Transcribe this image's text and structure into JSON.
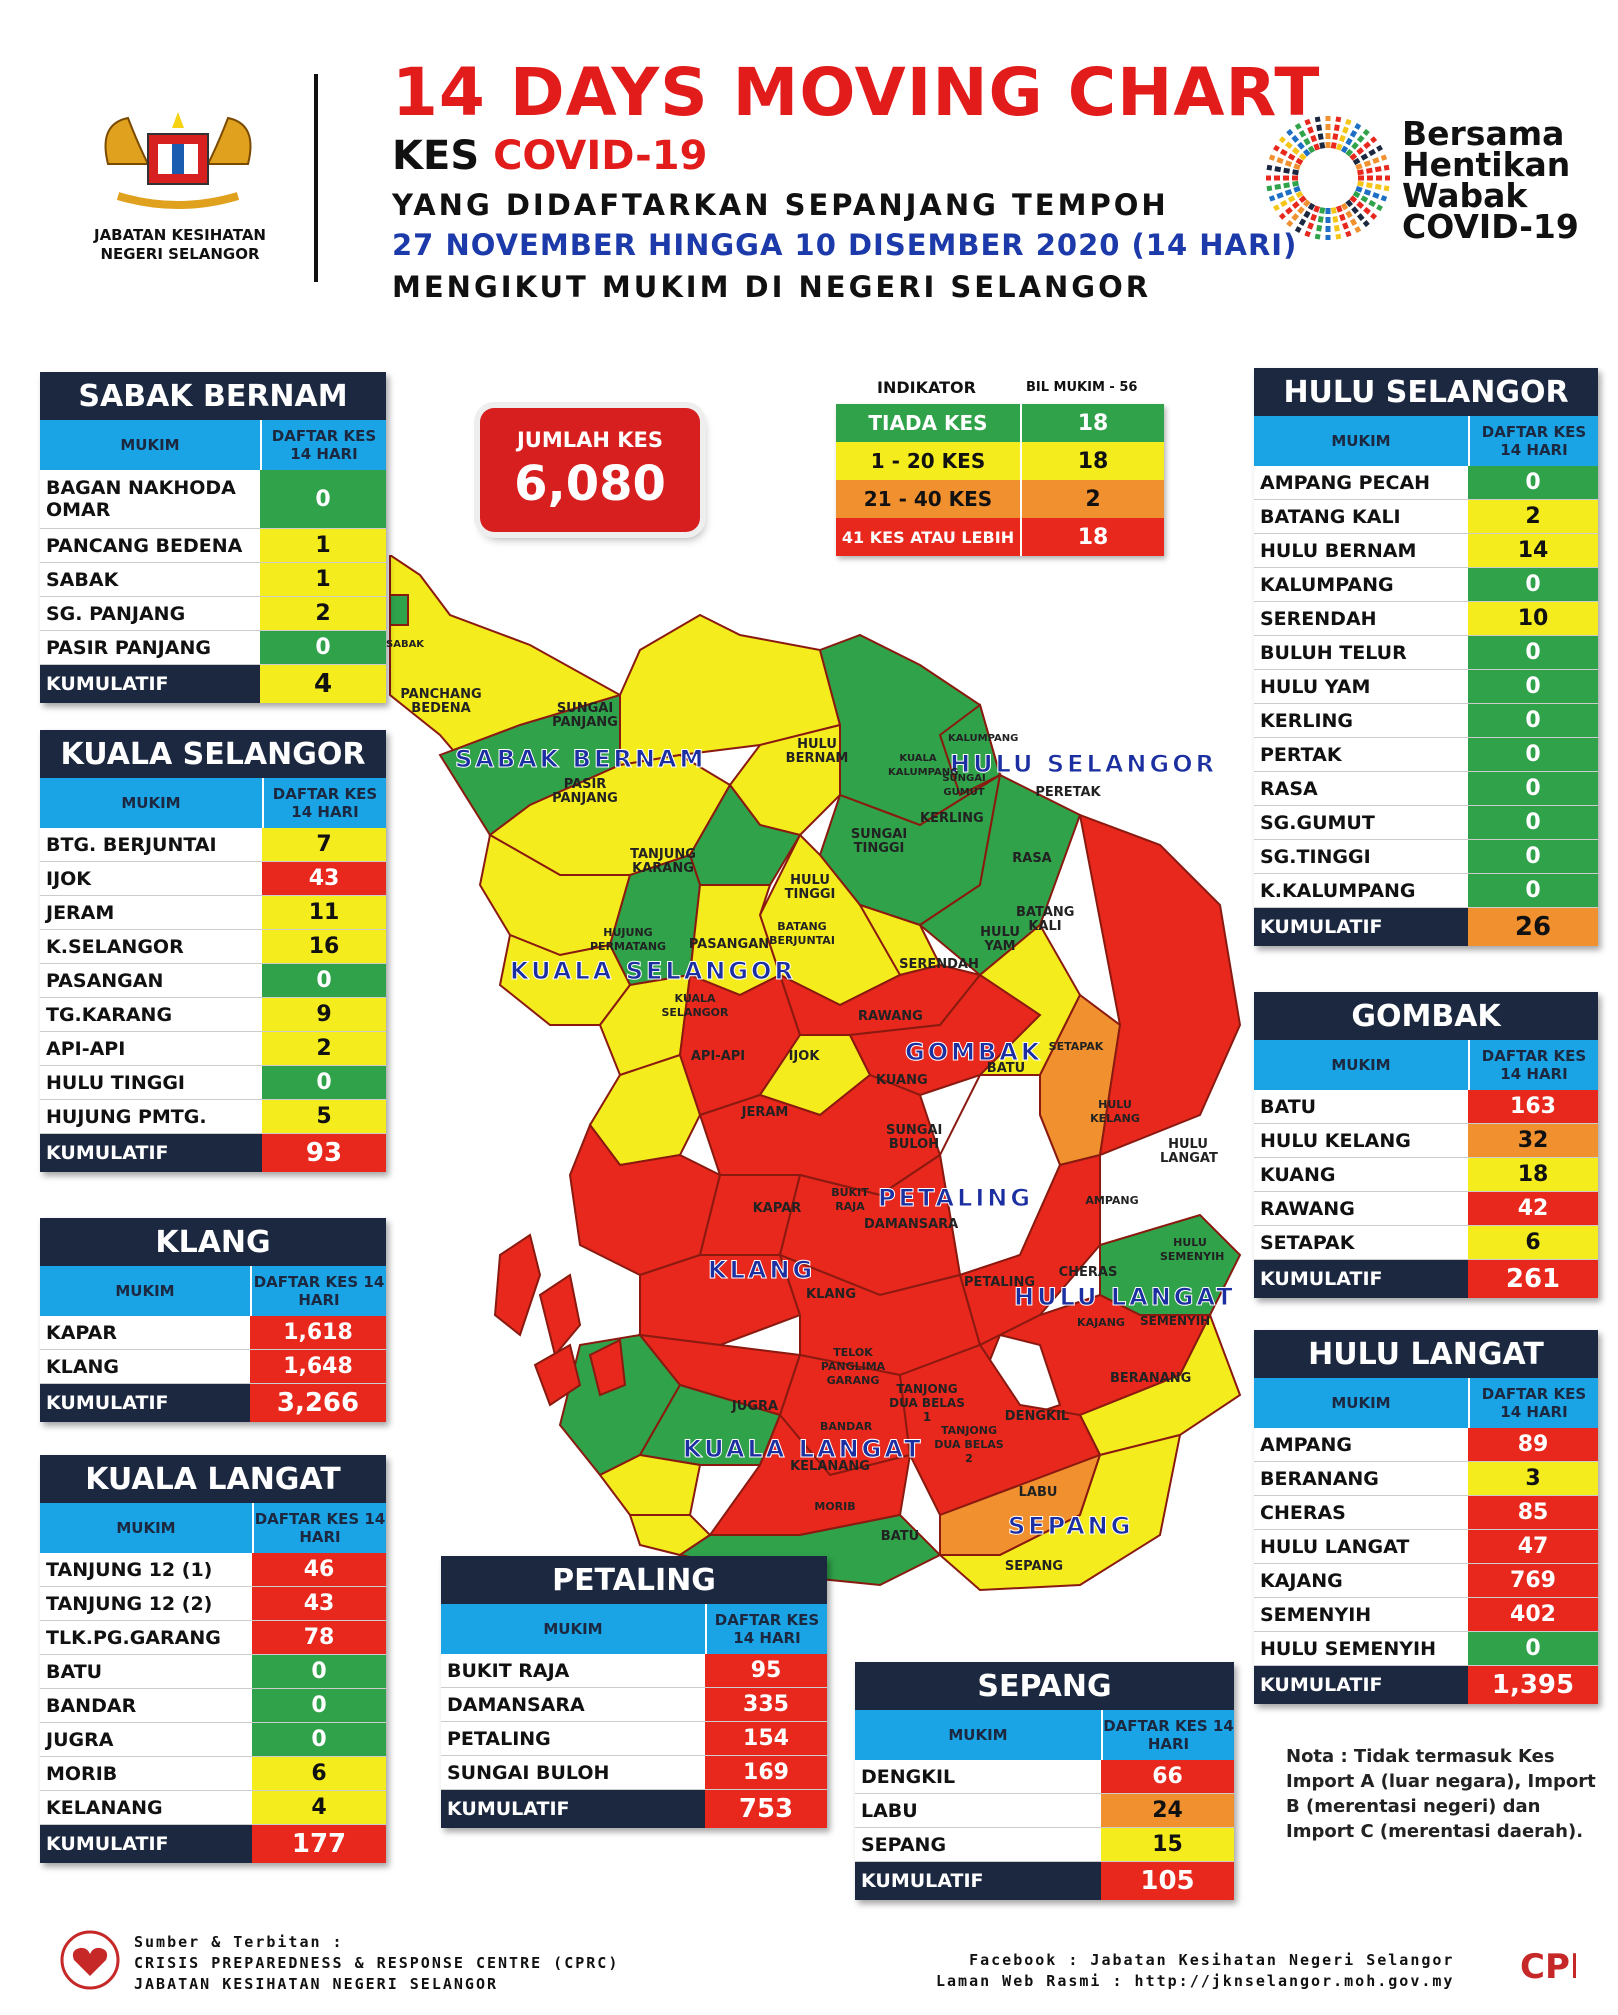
{
  "header": {
    "title": "14 DAYS MOVING CHART",
    "kes_prefix": "KES",
    "kes_highlight": "COVID-19",
    "line3": "YANG DIDAFTARKAN SEPANJANG TEMPOH",
    "line4": "27 NOVEMBER HINGGA 10 DISEMBER 2020 (14 HARI)",
    "line5": "MENGIKUT MUKIM DI NEGERI SELANGOR",
    "agency": "JABATAN KESIHATAN NEGERI SELANGOR",
    "campaign": [
      "Bersama",
      "Hentikan",
      "Wabak",
      "COVID-19"
    ]
  },
  "jumlah": {
    "label": "JUMLAH KES",
    "value": "6,080"
  },
  "indicator": {
    "header_left": "INDIKATOR",
    "header_right": "BIL MUKIM - 56",
    "rows": [
      {
        "label": "TIADA KES",
        "value": "18",
        "color": "#2fa24a"
      },
      {
        "label": "1 - 20 KES",
        "value": "18",
        "color": "#f5ec1e"
      },
      {
        "label": "21 - 40 KES",
        "value": "2",
        "color": "#f0902e"
      },
      {
        "label": "41 KES ATAU LEBIH",
        "value": "18",
        "color": "#e8271d"
      }
    ]
  },
  "table_headers": {
    "mukim": "MUKIM",
    "daftar": "DAFTAR KES 14 HARI",
    "kumulatif": "KUMULATIF"
  },
  "districts": {
    "sabak_bernam": {
      "name": "SABAK BERNAM",
      "rows": [
        {
          "mukim": "BAGAN NAKHODA OMAR",
          "value": "0",
          "level": "g"
        },
        {
          "mukim": "PANCANG BEDENA",
          "value": "1",
          "level": "y"
        },
        {
          "mukim": "SABAK",
          "value": "1",
          "level": "y"
        },
        {
          "mukim": "SG. PANJANG",
          "value": "2",
          "level": "y"
        },
        {
          "mukim": "PASIR PANJANG",
          "value": "0",
          "level": "g"
        }
      ],
      "kumulatif": "4",
      "kum_level": "y"
    },
    "kuala_selangor": {
      "name": "KUALA SELANGOR",
      "rows": [
        {
          "mukim": "BTG. BERJUNTAI",
          "value": "7",
          "level": "y"
        },
        {
          "mukim": "IJOK",
          "value": "43",
          "level": "r"
        },
        {
          "mukim": "JERAM",
          "value": "11",
          "level": "y"
        },
        {
          "mukim": "K.SELANGOR",
          "value": "16",
          "level": "y"
        },
        {
          "mukim": "PASANGAN",
          "value": "0",
          "level": "g"
        },
        {
          "mukim": "TG.KARANG",
          "value": "9",
          "level": "y"
        },
        {
          "mukim": "API-API",
          "value": "2",
          "level": "y"
        },
        {
          "mukim": "HULU TINGGI",
          "value": "0",
          "level": "g"
        },
        {
          "mukim": "HUJUNG PMTG.",
          "value": "5",
          "level": "y"
        }
      ],
      "kumulatif": "93",
      "kum_level": "r"
    },
    "klang": {
      "name": "KLANG",
      "rows": [
        {
          "mukim": "KAPAR",
          "value": "1,618",
          "level": "r"
        },
        {
          "mukim": "KLANG",
          "value": "1,648",
          "level": "r"
        }
      ],
      "kumulatif": "3,266",
      "kum_level": "r"
    },
    "kuala_langat": {
      "name": "KUALA LANGAT",
      "rows": [
        {
          "mukim": "TANJUNG 12 (1)",
          "value": "46",
          "level": "r"
        },
        {
          "mukim": "TANJUNG 12 (2)",
          "value": "43",
          "level": "r"
        },
        {
          "mukim": "TLK.PG.GARANG",
          "value": "78",
          "level": "r"
        },
        {
          "mukim": "BATU",
          "value": "0",
          "level": "g"
        },
        {
          "mukim": "BANDAR",
          "value": "0",
          "level": "g"
        },
        {
          "mukim": "JUGRA",
          "value": "0",
          "level": "g"
        },
        {
          "mukim": "MORIB",
          "value": "6",
          "level": "y"
        },
        {
          "mukim": "KELANANG",
          "value": "4",
          "level": "y"
        }
      ],
      "kumulatif": "177",
      "kum_level": "r"
    },
    "petaling": {
      "name": "PETALING",
      "rows": [
        {
          "mukim": "BUKIT RAJA",
          "value": "95",
          "level": "r"
        },
        {
          "mukim": "DAMANSARA",
          "value": "335",
          "level": "r"
        },
        {
          "mukim": "PETALING",
          "value": "154",
          "level": "r"
        },
        {
          "mukim": "SUNGAI BULOH",
          "value": "169",
          "level": "r"
        }
      ],
      "kumulatif": "753",
      "kum_level": "r"
    },
    "sepang": {
      "name": "SEPANG",
      "rows": [
        {
          "mukim": "DENGKIL",
          "value": "66",
          "level": "r"
        },
        {
          "mukim": "LABU",
          "value": "24",
          "level": "o"
        },
        {
          "mukim": "SEPANG",
          "value": "15",
          "level": "y"
        }
      ],
      "kumulatif": "105",
      "kum_level": "r"
    },
    "hulu_selangor": {
      "name": "HULU SELANGOR",
      "rows": [
        {
          "mukim": "AMPANG PECAH",
          "value": "0",
          "level": "g"
        },
        {
          "mukim": "BATANG KALI",
          "value": "2",
          "level": "y"
        },
        {
          "mukim": "HULU BERNAM",
          "value": "14",
          "level": "y"
        },
        {
          "mukim": "KALUMPANG",
          "value": "0",
          "level": "g"
        },
        {
          "mukim": "SERENDAH",
          "value": "10",
          "level": "y"
        },
        {
          "mukim": "BULUH TELUR",
          "value": "0",
          "level": "g"
        },
        {
          "mukim": "HULU YAM",
          "value": "0",
          "level": "g"
        },
        {
          "mukim": "KERLING",
          "value": "0",
          "level": "g"
        },
        {
          "mukim": "PERTAK",
          "value": "0",
          "level": "g"
        },
        {
          "mukim": "RASA",
          "value": "0",
          "level": "g"
        },
        {
          "mukim": "SG.GUMUT",
          "value": "0",
          "level": "g"
        },
        {
          "mukim": "SG.TINGGI",
          "value": "0",
          "level": "g"
        },
        {
          "mukim": "K.KALUMPANG",
          "value": "0",
          "level": "g"
        }
      ],
      "kumulatif": "26",
      "kum_level": "o"
    },
    "gombak": {
      "name": "GOMBAK",
      "rows": [
        {
          "mukim": "BATU",
          "value": "163",
          "level": "r"
        },
        {
          "mukim": "HULU KELANG",
          "value": "32",
          "level": "o"
        },
        {
          "mukim": "KUANG",
          "value": "18",
          "level": "y"
        },
        {
          "mukim": "RAWANG",
          "value": "42",
          "level": "r"
        },
        {
          "mukim": "SETAPAK",
          "value": "6",
          "level": "y"
        }
      ],
      "kumulatif": "261",
      "kum_level": "r"
    },
    "hulu_langat": {
      "name": "HULU LANGAT",
      "rows": [
        {
          "mukim": "AMPANG",
          "value": "89",
          "level": "r"
        },
        {
          "mukim": "BERANANG",
          "value": "3",
          "level": "y"
        },
        {
          "mukim": "CHERAS",
          "value": "85",
          "level": "r"
        },
        {
          "mukim": "HULU LANGAT",
          "value": "47",
          "level": "r"
        },
        {
          "mukim": "KAJANG",
          "value": "769",
          "level": "r"
        },
        {
          "mukim": "SEMENYIH",
          "value": "402",
          "level": "r"
        },
        {
          "mukim": "HULU SEMENYIH",
          "value": "0",
          "level": "g"
        }
      ],
      "kumulatif": "1,395",
      "kum_level": "r"
    }
  },
  "map_labels": {
    "districts": [
      "SABAK BERNAM",
      "HULU SELANGOR",
      "KUALA SELANGOR",
      "GOMBAK",
      "PETALING",
      "KLANG",
      "HULU LANGAT",
      "KUALA LANGAT",
      "SEPANG"
    ],
    "mukims": [
      "PANCHANG BEDENA",
      "SUNGAI PANJANG",
      "PASIR PANJANG",
      "HULU BERNAM",
      "TANJUNG KARANG",
      "SUNGAI TINGGI",
      "HULU TINGGI",
      "KERLING",
      "PERETAK",
      "RASA",
      "BATANG KALI",
      "HULU YAM",
      "SERENDAH",
      "BATANG BERJUNTAI",
      "PASANGAN",
      "HUJUNG PERMATANG",
      "KUALA SELANGOR",
      "API-API",
      "IJOK",
      "RAWANG",
      "KUANG",
      "BATU",
      "SETAPAK",
      "HULU KELANG",
      "JERAM",
      "SUNGAI BULOH",
      "HULU LANGAT",
      "KAPAR",
      "BUKIT RAJA",
      "DAMANSARA",
      "AMPANG",
      "HULU SEMENYIH",
      "KLANG",
      "PETALING",
      "CHERAS",
      "KAJANG",
      "SEMENYIH",
      "TELOK PANGLIMA GARANG",
      "TANJONG DUA BELAS 1",
      "DENGKIL",
      "BERANANG",
      "JUGRA",
      "BANDAR",
      "KELANANG",
      "TANJONG DUA BELAS 2",
      "MORIB",
      "LABU",
      "BATU",
      "SEPANG",
      "SUNGAI GUMUT",
      "KUALA KALUMPANG",
      "KALUMPANG",
      "SABAK"
    ]
  },
  "note": "Nota : Tidak termasuk Kes Import A (luar negara), Import B (merentasi negeri) dan Import C (merentasi daerah).",
  "footer": {
    "left": [
      "Sumber & Terbitan :",
      "CRISIS PREPAREDNESS & RESPONSE CENTRE (CPRC)",
      "JABATAN KESIHATAN NEGERI SELANGOR"
    ],
    "right": [
      "Facebook : Jabatan Kesihatan Negeri Selangor",
      "Laman Web Rasmi : http://jknselangor.moh.gov.my"
    ]
  },
  "colors": {
    "green": "#2fa24a",
    "yellow": "#f5ec1e",
    "orange": "#f0902e",
    "red": "#e8271d",
    "navy": "#1b2840",
    "blue": "#1aa4e6",
    "title_red": "#e21b1b"
  }
}
